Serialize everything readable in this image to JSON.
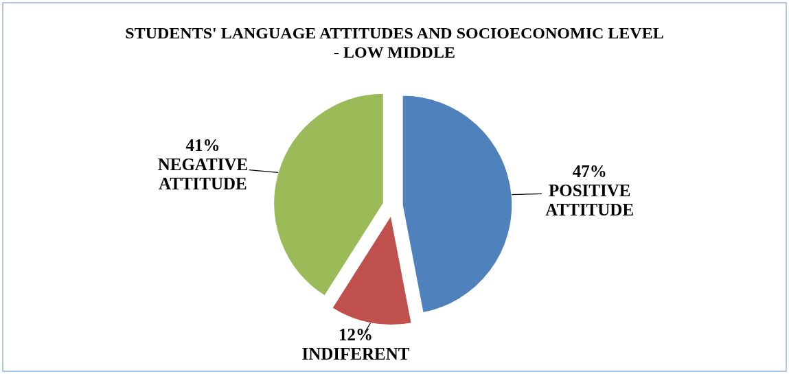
{
  "chart_data": {
    "type": "pie",
    "title": "STUDENTS' LANGUAGE ATTITUDES AND SOCIOECONOMIC LEVEL - LOW MIDDLE",
    "categories": [
      "POSITIVE ATTITUDE",
      "INDIFERENT",
      "NEGATIVE ATTITUDE"
    ],
    "values": [
      47,
      12,
      41
    ],
    "colors": [
      "#4f81bd",
      "#c0504d",
      "#9bbb59"
    ],
    "value_labels": [
      "47%",
      "12%",
      "41%"
    ]
  }
}
